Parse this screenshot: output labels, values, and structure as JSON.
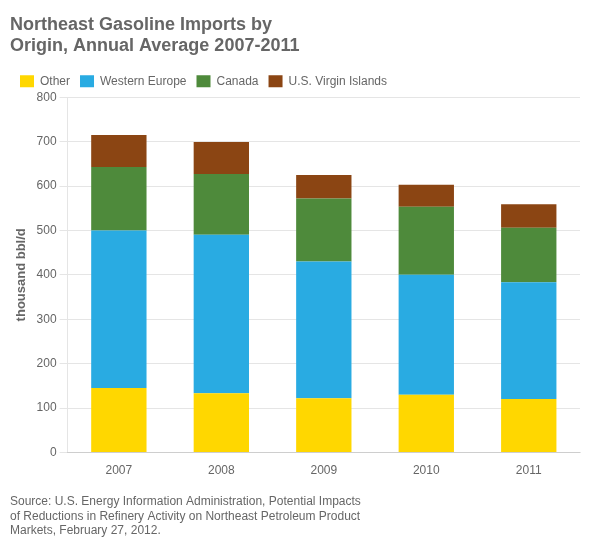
{
  "chart_data": {
    "type": "bar",
    "title": [
      "Northeast Gasoline Imports by",
      "Origin, Annual Average 2007-2011"
    ],
    "ylabel": "thousand bbl/d",
    "annotations": [
      "Source: U.S. Energy Information Administration, Potential Impacts",
      "of Reductions in Refinery Activity on Northeast Petroleum Product",
      "Markets, February 27, 2012."
    ],
    "categories": [
      "2007",
      "2008",
      "2009",
      "2010",
      "2011"
    ],
    "series": [
      {
        "name": "Other",
        "color": "#FFD700",
        "values": [
          145,
          133,
          122,
          130,
          120
        ]
      },
      {
        "name": "Western Europe",
        "color": "#29ABE2",
        "values": [
          355,
          357,
          308,
          270,
          263
        ]
      },
      {
        "name": "Canada",
        "color": "#4E8A3B",
        "values": [
          143,
          137,
          142,
          153,
          123
        ]
      },
      {
        "name": "U.S. Virgin Islands",
        "color": "#8B4513",
        "values": [
          72,
          72,
          53,
          50,
          53
        ]
      }
    ],
    "stacked": true,
    "ylim": [
      0,
      800
    ],
    "yticks": [
      0,
      100,
      200,
      300,
      400,
      500,
      600,
      700,
      800
    ],
    "grid": true,
    "legend": "upper left"
  }
}
